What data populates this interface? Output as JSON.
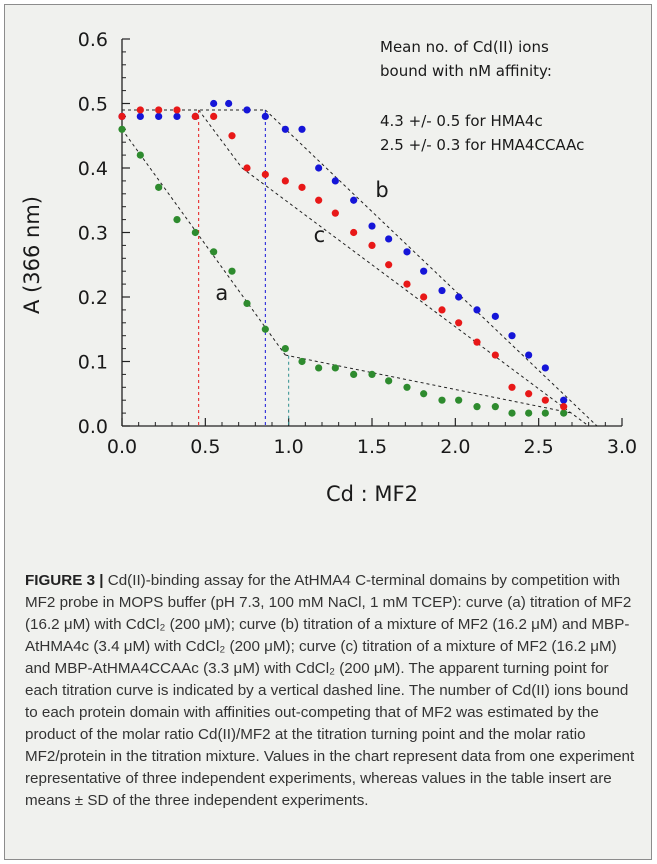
{
  "chart_data": {
    "type": "scatter",
    "xlabel": "Cd : MF2",
    "ylabel": "A (366 nm)",
    "xlim": [
      0.0,
      3.0
    ],
    "ylim": [
      0.0,
      0.6
    ],
    "x_ticks": [
      "0.0",
      "0.5",
      "1.0",
      "1.5",
      "2.0",
      "2.5",
      "3.0"
    ],
    "y_ticks": [
      "0.0",
      "0.1",
      "0.2",
      "0.3",
      "0.4",
      "0.5",
      "0.6"
    ],
    "grid": false,
    "annotation_lines": [
      "Mean no. of Cd(II) ions",
      "bound with nM affinity:",
      "",
      "4.3 +/- 0.5 for HMA4c",
      "2.5 +/- 0.3 for HMA4CCAAc"
    ],
    "series": [
      {
        "name": "a",
        "color": "#2e8b2e",
        "points": [
          [
            0.0,
            0.46
          ],
          [
            0.11,
            0.42
          ],
          [
            0.22,
            0.37
          ],
          [
            0.33,
            0.32
          ],
          [
            0.44,
            0.3
          ],
          [
            0.55,
            0.27
          ],
          [
            0.66,
            0.24
          ],
          [
            0.75,
            0.19
          ],
          [
            0.86,
            0.15
          ],
          [
            0.98,
            0.12
          ],
          [
            1.08,
            0.1
          ],
          [
            1.18,
            0.09
          ],
          [
            1.28,
            0.09
          ],
          [
            1.39,
            0.08
          ],
          [
            1.5,
            0.08
          ],
          [
            1.6,
            0.07
          ],
          [
            1.71,
            0.06
          ],
          [
            1.81,
            0.05
          ],
          [
            1.92,
            0.04
          ],
          [
            2.02,
            0.04
          ],
          [
            2.13,
            0.03
          ],
          [
            2.24,
            0.03
          ],
          [
            2.34,
            0.02
          ],
          [
            2.44,
            0.02
          ],
          [
            2.54,
            0.02
          ],
          [
            2.65,
            0.02
          ]
        ],
        "fit_segments": [
          [
            [
              0.0,
              0.46
            ],
            [
              0.98,
              0.11
            ]
          ],
          [
            [
              0.98,
              0.11
            ],
            [
              2.7,
              0.02
            ]
          ]
        ],
        "turning_point": 1.0
      },
      {
        "name": "b",
        "color": "#1515d8",
        "points": [
          [
            0.0,
            0.48
          ],
          [
            0.11,
            0.48
          ],
          [
            0.22,
            0.48
          ],
          [
            0.33,
            0.48
          ],
          [
            0.44,
            0.48
          ],
          [
            0.55,
            0.5
          ],
          [
            0.64,
            0.5
          ],
          [
            0.75,
            0.49
          ],
          [
            0.86,
            0.48
          ],
          [
            0.98,
            0.46
          ],
          [
            1.08,
            0.46
          ],
          [
            1.18,
            0.4
          ],
          [
            1.28,
            0.38
          ],
          [
            1.39,
            0.35
          ],
          [
            1.5,
            0.31
          ],
          [
            1.6,
            0.29
          ],
          [
            1.71,
            0.27
          ],
          [
            1.81,
            0.24
          ],
          [
            1.92,
            0.21
          ],
          [
            2.02,
            0.2
          ],
          [
            2.13,
            0.18
          ],
          [
            2.24,
            0.17
          ],
          [
            2.34,
            0.14
          ],
          [
            2.44,
            0.11
          ],
          [
            2.54,
            0.09
          ],
          [
            2.65,
            0.04
          ]
        ],
        "fit_segments": [
          [
            [
              0.0,
              0.49
            ],
            [
              0.86,
              0.49
            ]
          ],
          [
            [
              0.86,
              0.49
            ],
            [
              2.85,
              0.0
            ]
          ]
        ],
        "turning_point": 0.86
      },
      {
        "name": "c",
        "color": "#e81818",
        "points": [
          [
            0.0,
            0.48
          ],
          [
            0.11,
            0.49
          ],
          [
            0.22,
            0.49
          ],
          [
            0.33,
            0.49
          ],
          [
            0.44,
            0.48
          ],
          [
            0.55,
            0.48
          ],
          [
            0.66,
            0.45
          ],
          [
            0.75,
            0.4
          ],
          [
            0.86,
            0.39
          ],
          [
            0.98,
            0.38
          ],
          [
            1.08,
            0.37
          ],
          [
            1.18,
            0.35
          ],
          [
            1.28,
            0.33
          ],
          [
            1.39,
            0.3
          ],
          [
            1.5,
            0.28
          ],
          [
            1.6,
            0.25
          ],
          [
            1.71,
            0.22
          ],
          [
            1.81,
            0.2
          ],
          [
            1.92,
            0.18
          ],
          [
            2.02,
            0.16
          ],
          [
            2.13,
            0.13
          ],
          [
            2.24,
            0.11
          ],
          [
            2.34,
            0.06
          ],
          [
            2.44,
            0.05
          ],
          [
            2.54,
            0.04
          ],
          [
            2.65,
            0.03
          ]
        ],
        "fit_segments": [
          [
            [
              0.0,
              0.49
            ],
            [
              0.46,
              0.49
            ]
          ],
          [
            [
              0.46,
              0.49
            ],
            [
              0.72,
              0.4
            ]
          ],
          [
            [
              0.72,
              0.4
            ],
            [
              2.8,
              0.0
            ]
          ]
        ],
        "turning_point": 0.46
      }
    ]
  },
  "caption": {
    "label": "FIGURE 3 |",
    "text": "Cd(II)-binding assay for the AtHMA4 C-terminal domains by competition with MF2 probe in MOPS buffer (pH 7.3, 100 mM NaCl, 1 mM TCEP): curve (a) titration of MF2 (16.2 μM) with CdCl₂ (200 μM); curve (b) titration of a mixture of MF2 (16.2 μM) and MBP-AtHMA4c (3.4 μM) with CdCl₂ (200 μM); curve (c) titration of a mixture of MF2 (16.2 μM) and MBP-AtHMA4CCAAc (3.3 μM) with CdCl₂ (200 μM). The apparent turning point for each titration curve is indicated by a vertical dashed line. The number of Cd(II) ions bound to each protein domain with affinities out-competing that of MF2 was estimated by the product of the molar ratio Cd(II)/MF2 at the titration turning point and the molar ratio MF2/protein in the titration mixture. Values in the chart represent data from one experiment representative of three independent experiments, whereas values in the table insert are means ± SD of the three independent experiments."
  }
}
